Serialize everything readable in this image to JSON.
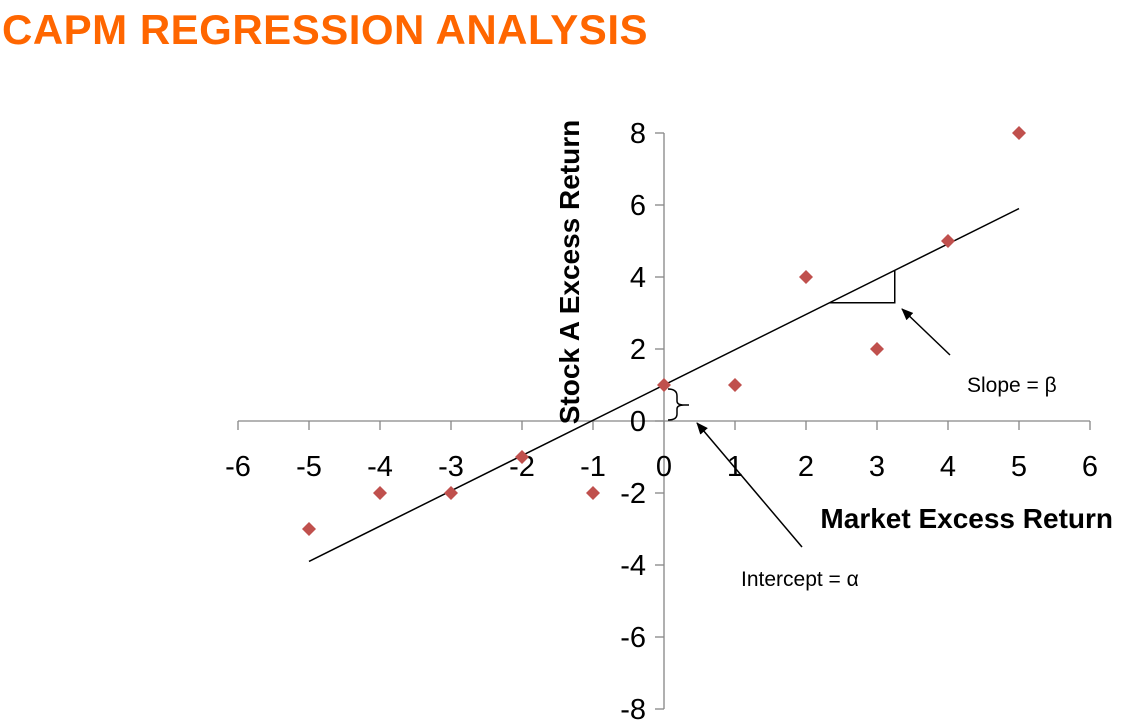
{
  "page_title": "CAPM REGRESSION ANALYSIS",
  "colors": {
    "title": "#ff6600",
    "marker": "#c0504d",
    "line": "#000000",
    "axis": "#868686"
  },
  "chart_data": {
    "type": "scatter",
    "title": "",
    "xlabel": "Market Excess Return",
    "ylabel": "Stock A Excess Return",
    "xlim": [
      -6,
      6
    ],
    "ylim": [
      -8,
      8
    ],
    "x_ticks": [
      -6,
      -5,
      -4,
      -3,
      -2,
      -1,
      0,
      1,
      2,
      3,
      4,
      5,
      6
    ],
    "y_ticks": [
      -8,
      -6,
      -4,
      -2,
      0,
      2,
      4,
      6,
      8
    ],
    "grid": false,
    "marker": "diamond",
    "points": [
      {
        "x": -5,
        "y": -3
      },
      {
        "x": -4,
        "y": -2
      },
      {
        "x": -3,
        "y": -2
      },
      {
        "x": -2,
        "y": -1
      },
      {
        "x": -1,
        "y": -2
      },
      {
        "x": 0,
        "y": 1
      },
      {
        "x": 1,
        "y": 1
      },
      {
        "x": 2,
        "y": 4
      },
      {
        "x": 3,
        "y": 2
      },
      {
        "x": 4,
        "y": 5
      },
      {
        "x": 5,
        "y": 8
      }
    ],
    "regression_line": {
      "intercept": 1.0,
      "slope": 0.98,
      "x_range": [
        -5,
        5
      ]
    },
    "annotations": [
      {
        "name": "slope",
        "text": "Slope = β"
      },
      {
        "name": "intercept",
        "text": "Intercept = α"
      }
    ]
  }
}
